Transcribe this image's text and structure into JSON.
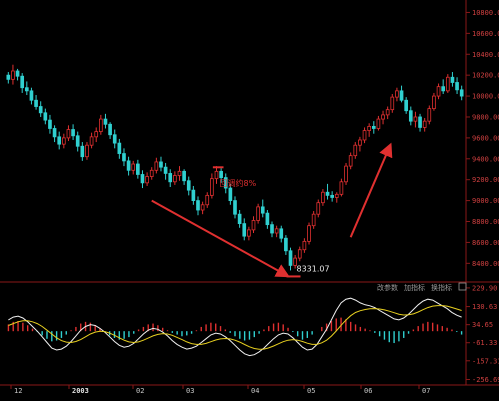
{
  "chart_data": [
    {
      "type": "candlestick",
      "price_ticks": [
        "10800.00",
        "10600.00",
        "10400.00",
        "10200.00",
        "10000.00",
        "9800.00",
        "9600.00",
        "9400.00",
        "9200.00",
        "9000.00",
        "8800.00",
        "8600.00",
        "8400.00"
      ],
      "ylim": [
        8250,
        10900
      ],
      "x_labels": [
        "12",
        "2003",
        "02",
        "03",
        "04",
        "05",
        "06",
        "07"
      ],
      "bullish_color": "#e03030",
      "bearish_color": "#30d0d0",
      "candles": [
        [
          10200,
          10230,
          10120,
          10160
        ],
        [
          10160,
          10300,
          10110,
          10240
        ],
        [
          10240,
          10260,
          10150,
          10190
        ],
        [
          10190,
          10220,
          10030,
          10080
        ],
        [
          10080,
          10140,
          10010,
          10050
        ],
        [
          10050,
          10080,
          9920,
          9960
        ],
        [
          9960,
          10010,
          9870,
          9900
        ],
        [
          9900,
          9950,
          9800,
          9840
        ],
        [
          9840,
          9880,
          9730,
          9770
        ],
        [
          9770,
          9820,
          9640,
          9690
        ],
        [
          9690,
          9720,
          9560,
          9610
        ],
        [
          9610,
          9660,
          9490,
          9540
        ],
        [
          9540,
          9640,
          9500,
          9600
        ],
        [
          9600,
          9720,
          9570,
          9680
        ],
        [
          9680,
          9730,
          9580,
          9620
        ],
        [
          9620,
          9660,
          9470,
          9520
        ],
        [
          9520,
          9560,
          9380,
          9420
        ],
        [
          9420,
          9560,
          9390,
          9530
        ],
        [
          9530,
          9650,
          9500,
          9610
        ],
        [
          9610,
          9700,
          9560,
          9660
        ],
        [
          9660,
          9820,
          9630,
          9780
        ],
        [
          9780,
          9830,
          9690,
          9730
        ],
        [
          9730,
          9750,
          9590,
          9630
        ],
        [
          9630,
          9680,
          9500,
          9550
        ],
        [
          9550,
          9590,
          9400,
          9450
        ],
        [
          9450,
          9500,
          9330,
          9380
        ],
        [
          9380,
          9420,
          9240,
          9290
        ],
        [
          9290,
          9380,
          9250,
          9350
        ],
        [
          9350,
          9390,
          9210,
          9250
        ],
        [
          9250,
          9290,
          9120,
          9170
        ],
        [
          9170,
          9270,
          9140,
          9230
        ],
        [
          9230,
          9320,
          9200,
          9290
        ],
        [
          9290,
          9410,
          9260,
          9370
        ],
        [
          9370,
          9420,
          9280,
          9320
        ],
        [
          9320,
          9360,
          9200,
          9260
        ],
        [
          9260,
          9300,
          9130,
          9180
        ],
        [
          9180,
          9280,
          9150,
          9240
        ],
        [
          9240,
          9330,
          9190,
          9280
        ],
        [
          9280,
          9300,
          9150,
          9190
        ],
        [
          9190,
          9230,
          9050,
          9100
        ],
        [
          9100,
          9140,
          8960,
          9000
        ],
        [
          9000,
          9040,
          8860,
          8910
        ],
        [
          8910,
          8990,
          8870,
          8960
        ],
        [
          8960,
          9080,
          8930,
          9050
        ],
        [
          9050,
          9260,
          9020,
          9210
        ],
        [
          9210,
          9330,
          9160,
          9280
        ],
        [
          9280,
          9310,
          9170,
          9220
        ],
        [
          9220,
          9260,
          9070,
          9120
        ],
        [
          9120,
          9160,
          8960,
          9000
        ],
        [
          9000,
          9040,
          8830,
          8870
        ],
        [
          8870,
          8910,
          8740,
          8780
        ],
        [
          8780,
          8830,
          8620,
          8660
        ],
        [
          8660,
          8750,
          8620,
          8720
        ],
        [
          8720,
          8850,
          8690,
          8810
        ],
        [
          8810,
          8970,
          8780,
          8940
        ],
        [
          8940,
          9010,
          8840,
          8880
        ],
        [
          8880,
          8910,
          8730,
          8770
        ],
        [
          8770,
          8800,
          8650,
          8690
        ],
        [
          8690,
          8760,
          8650,
          8730
        ],
        [
          8730,
          8760,
          8600,
          8640
        ],
        [
          8640,
          8670,
          8480,
          8520
        ],
        [
          8520,
          8550,
          8332,
          8380
        ],
        [
          8380,
          8480,
          8350,
          8450
        ],
        [
          8450,
          8560,
          8420,
          8530
        ],
        [
          8530,
          8640,
          8500,
          8610
        ],
        [
          8610,
          8790,
          8580,
          8760
        ],
        [
          8760,
          8900,
          8730,
          8870
        ],
        [
          8870,
          9010,
          8840,
          8980
        ],
        [
          8980,
          9110,
          8950,
          9080
        ],
        [
          9080,
          9160,
          9010,
          9050
        ],
        [
          9050,
          9090,
          8990,
          9030
        ],
        [
          9030,
          9080,
          8980,
          9060
        ],
        [
          9060,
          9210,
          9040,
          9180
        ],
        [
          9180,
          9360,
          9150,
          9330
        ],
        [
          9330,
          9460,
          9300,
          9430
        ],
        [
          9430,
          9560,
          9400,
          9530
        ],
        [
          9530,
          9610,
          9470,
          9580
        ],
        [
          9580,
          9700,
          9550,
          9670
        ],
        [
          9670,
          9740,
          9610,
          9710
        ],
        [
          9710,
          9760,
          9640,
          9690
        ],
        [
          9690,
          9810,
          9670,
          9780
        ],
        [
          9780,
          9860,
          9730,
          9820
        ],
        [
          9820,
          9900,
          9780,
          9870
        ],
        [
          9870,
          10020,
          9840,
          9990
        ],
        [
          9990,
          10080,
          9950,
          10050
        ],
        [
          10050,
          10100,
          9940,
          9960
        ],
        [
          9960,
          9990,
          9830,
          9860
        ],
        [
          9860,
          9900,
          9720,
          9760
        ],
        [
          9760,
          9850,
          9700,
          9800
        ],
        [
          9800,
          9830,
          9660,
          9700
        ],
        [
          9700,
          9790,
          9660,
          9760
        ],
        [
          9760,
          9910,
          9730,
          9880
        ],
        [
          9880,
          10030,
          9860,
          10000
        ],
        [
          10000,
          10120,
          9970,
          10090
        ],
        [
          10090,
          10160,
          10020,
          10050
        ],
        [
          10050,
          10210,
          10030,
          10180
        ],
        [
          10180,
          10230,
          10090,
          10130
        ],
        [
          10130,
          10180,
          10020,
          10060
        ],
        [
          10060,
          10100,
          9960,
          10000
        ]
      ],
      "annotations": [
        {
          "text": "回调约8%",
          "color": "#e03030"
        },
        {
          "text": "8331.07",
          "color": "#e8e8e8"
        }
      ]
    },
    {
      "type": "macd",
      "macd_ticks": [
        "229.90",
        "130.63",
        "34.65",
        "-61.33",
        "-157.31",
        "-256.69"
      ],
      "ylim": [
        -270,
        240
      ],
      "toolbar": [
        "改参数",
        "加指标",
        "换指标"
      ],
      "histogram": [
        40,
        55,
        60,
        50,
        35,
        15,
        -5,
        -25,
        -45,
        -60,
        -55,
        -40,
        -20,
        5,
        25,
        45,
        55,
        50,
        35,
        15,
        -5,
        -25,
        -40,
        -50,
        -45,
        -35,
        -15,
        10,
        25,
        40,
        45,
        35,
        20,
        5,
        -10,
        -20,
        -30,
        -25,
        -15,
        5,
        25,
        40,
        50,
        45,
        30,
        10,
        -10,
        -30,
        -45,
        -55,
        -50,
        -35,
        -15,
        10,
        30,
        45,
        50,
        40,
        20,
        -5,
        -30,
        -50,
        -40,
        -20,
        0,
        25,
        45,
        60,
        75,
        80,
        70,
        55,
        40,
        25,
        15,
        5,
        -10,
        -30,
        -50,
        -65,
        -70,
        -60,
        -40,
        -15,
        10,
        30,
        45,
        55,
        50,
        40,
        30,
        20,
        10,
        -5,
        -20
      ],
      "dif": [
        60,
        75,
        80,
        70,
        50,
        25,
        0,
        -30,
        -60,
        -90,
        -100,
        -95,
        -80,
        -55,
        -25,
        5,
        25,
        35,
        30,
        15,
        -5,
        -30,
        -55,
        -75,
        -85,
        -80,
        -65,
        -40,
        -15,
        5,
        15,
        10,
        -5,
        -25,
        -50,
        -70,
        -85,
        -95,
        -90,
        -80,
        -60,
        -40,
        -20,
        -10,
        -15,
        -30,
        -50,
        -75,
        -100,
        -120,
        -130,
        -125,
        -110,
        -90,
        -65,
        -40,
        -20,
        -10,
        -15,
        -35,
        -60,
        -85,
        -100,
        -95,
        -70,
        -30,
        10,
        60,
        110,
        150,
        170,
        175,
        165,
        150,
        140,
        135,
        125,
        110,
        95,
        80,
        65,
        60,
        70,
        90,
        115,
        140,
        160,
        170,
        165,
        150,
        135,
        120,
        100,
        85,
        75
      ],
      "dea": [
        30,
        40,
        50,
        55,
        55,
        50,
        40,
        25,
        5,
        -15,
        -35,
        -50,
        -58,
        -60,
        -55,
        -45,
        -30,
        -15,
        -5,
        0,
        -2,
        -10,
        -22,
        -35,
        -48,
        -57,
        -60,
        -57,
        -48,
        -37,
        -25,
        -17,
        -13,
        -15,
        -22,
        -33,
        -45,
        -57,
        -66,
        -70,
        -70,
        -65,
        -56,
        -47,
        -41,
        -39,
        -41,
        -48,
        -58,
        -71,
        -83,
        -92,
        -96,
        -95,
        -89,
        -79,
        -67,
        -56,
        -48,
        -45,
        -48,
        -55,
        -64,
        -70,
        -70,
        -62,
        -48,
        -26,
        1,
        31,
        59,
        82,
        99,
        109,
        115,
        119,
        120,
        118,
        113,
        106,
        98,
        90,
        86,
        87,
        92,
        102,
        114,
        125,
        133,
        136,
        136,
        133,
        126,
        118,
        110
      ]
    }
  ]
}
